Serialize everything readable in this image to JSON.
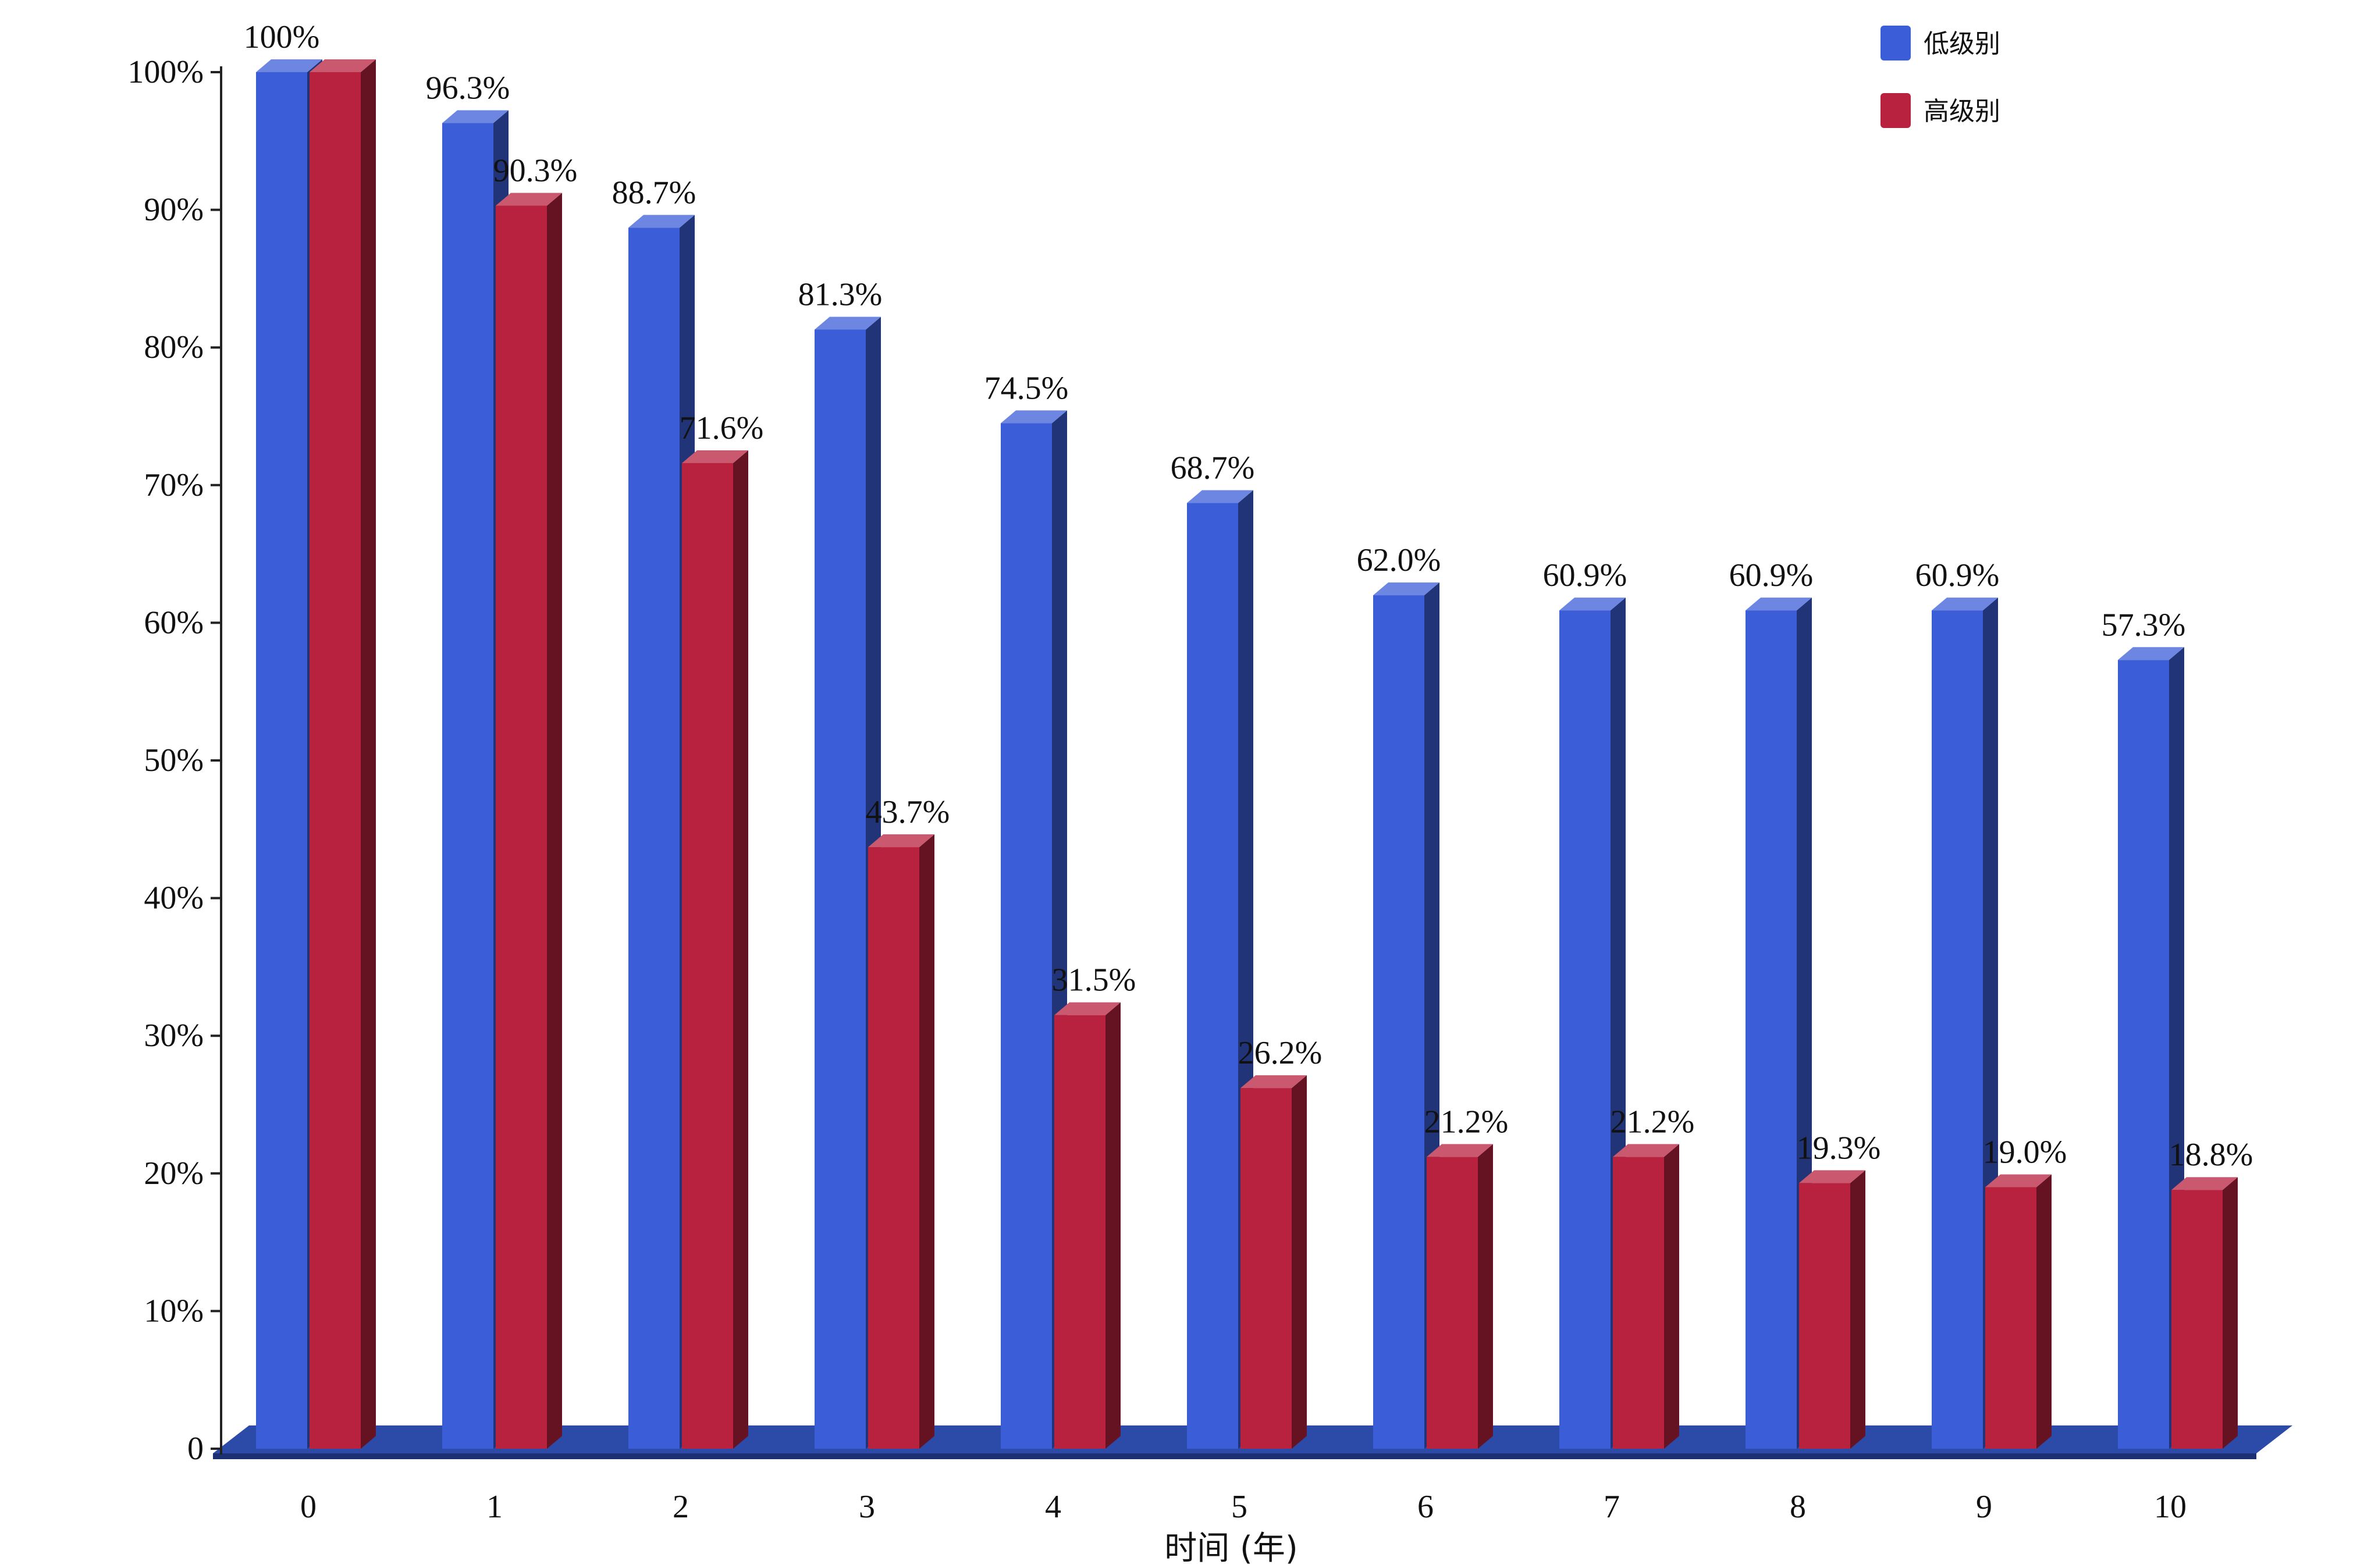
{
  "chart_data": {
    "type": "bar",
    "categories": [
      "0",
      "1",
      "2",
      "3",
      "4",
      "5",
      "6",
      "7",
      "8",
      "9",
      "10"
    ],
    "series": [
      {
        "name": "低级别",
        "color": "#3b5ed8",
        "values": [
          100,
          96.3,
          88.7,
          81.3,
          74.5,
          68.7,
          62.0,
          60.9,
          60.9,
          60.9,
          57.3
        ],
        "labels": [
          "100%",
          "96.3%",
          "88.7%",
          "81.3%",
          "74.5%",
          "68.7%",
          "62.0%",
          "60.9%",
          "60.9%",
          "60.9%",
          "57.3%"
        ]
      },
      {
        "name": "高级别",
        "color": "#b8223f",
        "values": [
          100,
          90.3,
          71.6,
          43.7,
          31.5,
          26.2,
          21.2,
          21.2,
          19.3,
          19.0,
          18.8
        ],
        "labels": [
          "",
          "90.3%",
          "71.6%",
          "43.7%",
          "31.5%",
          "26.2%",
          "21.2%",
          "21.2%",
          "19.3%",
          "19.0%",
          "18.8%"
        ]
      }
    ],
    "title": "",
    "xlabel": "时间 (年)",
    "ylabel": "",
    "ylim": [
      0,
      100
    ],
    "yticks": [
      {
        "value": 0,
        "label": "0"
      },
      {
        "value": 10,
        "label": "10%"
      },
      {
        "value": 20,
        "label": "20%"
      },
      {
        "value": 30,
        "label": "30%"
      },
      {
        "value": 40,
        "label": "40%"
      },
      {
        "value": 50,
        "label": "50%"
      },
      {
        "value": 60,
        "label": "60%"
      },
      {
        "value": 70,
        "label": "70%"
      },
      {
        "value": 80,
        "label": "80%"
      },
      {
        "value": 90,
        "label": "90%"
      },
      {
        "value": 100,
        "label": "100%"
      }
    ],
    "grid": false,
    "legend_position": "top-right",
    "style": "3d-bars"
  }
}
